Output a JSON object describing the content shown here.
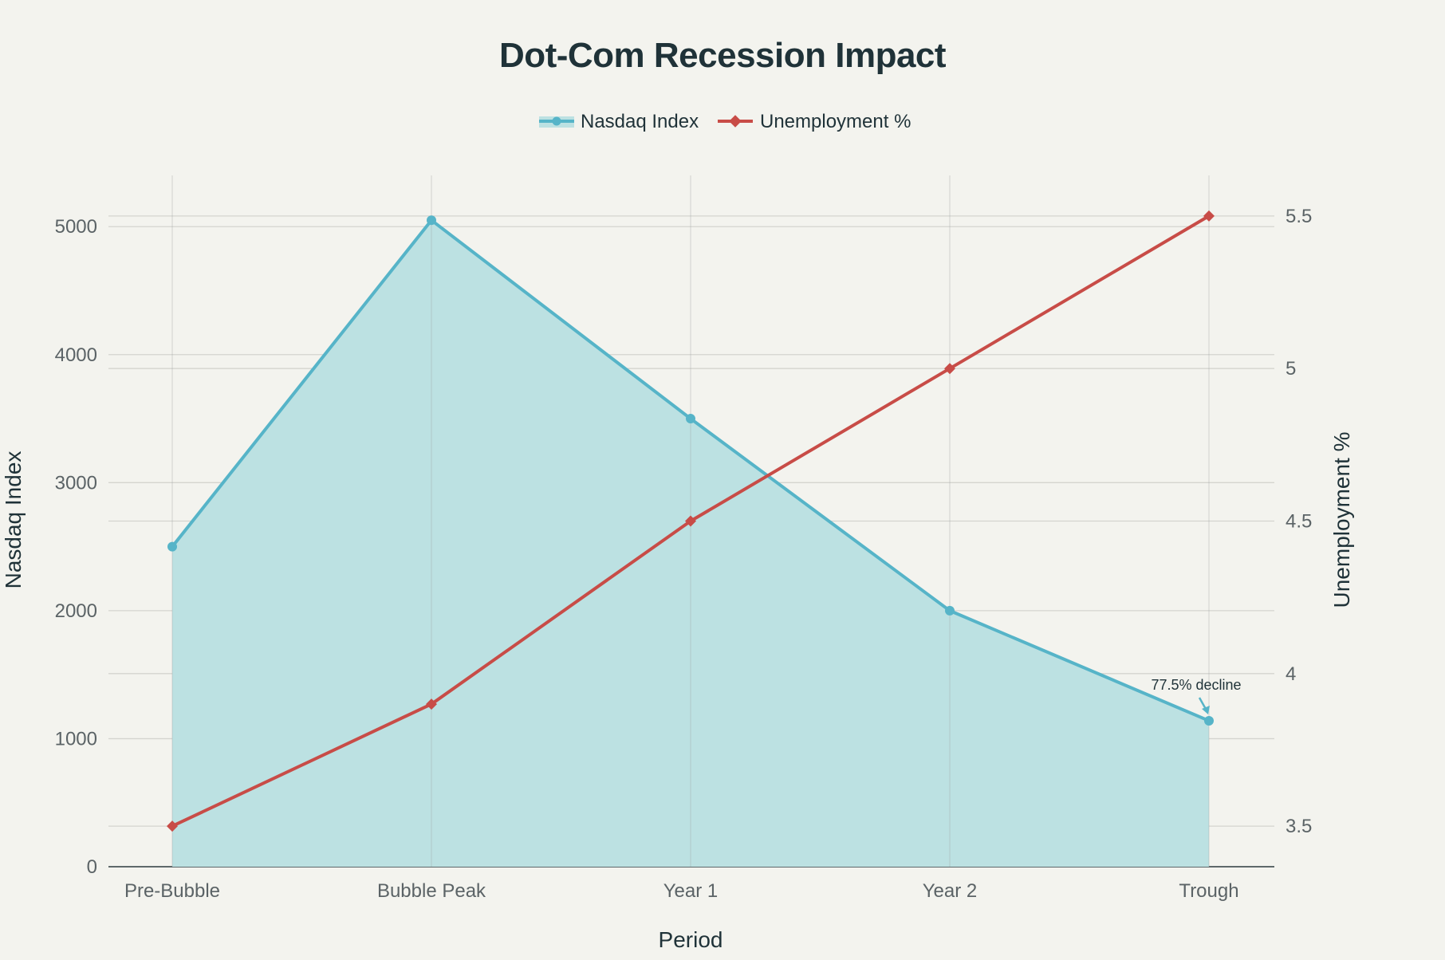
{
  "chart_data": {
    "type": "line",
    "title": "Dot-Com Recession Impact",
    "categories": [
      "Pre-Bubble",
      "Bubble Peak",
      "Year 1",
      "Year 2",
      "Trough"
    ],
    "xlabel": "Period",
    "ylabel": "Nasdaq Index",
    "y2label": "Unemployment %",
    "ylim": [
      0,
      5400
    ],
    "y2lim": [
      3.367,
      5.633
    ],
    "yticks": [
      "0",
      "1000",
      "2000",
      "3000",
      "4000",
      "5000"
    ],
    "y2ticks": [
      "3.5",
      "4",
      "4.5",
      "5",
      "5.5"
    ],
    "legend_position": "top-center",
    "grid": true,
    "series": [
      {
        "name": "Nasdaq Index",
        "axis": "left",
        "style": "area",
        "marker": "circle",
        "color": "#56b4c8",
        "fill": "#bce1e2",
        "values": [
          2500,
          5050,
          3500,
          2000,
          1140
        ]
      },
      {
        "name": "Unemployment %",
        "axis": "right",
        "style": "line",
        "marker": "diamond",
        "color": "#c84c47",
        "values": [
          3.5,
          3.9,
          4.5,
          5.0,
          5.5
        ]
      }
    ],
    "annotations": [
      {
        "text": "77.5% decline",
        "series": 0,
        "category": "Trough"
      }
    ]
  }
}
